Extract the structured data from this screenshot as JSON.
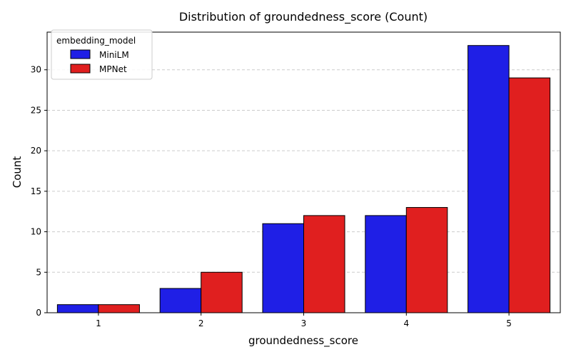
{
  "chart_data": {
    "type": "bar",
    "title": "Distribution of groundedness_score (Count)",
    "xlabel": "groundedness_score",
    "ylabel": "Count",
    "categories": [
      "1",
      "2",
      "3",
      "4",
      "5"
    ],
    "series": [
      {
        "name": "MiniLM",
        "color": "#1f1fe6",
        "values": [
          1,
          3,
          11,
          12,
          33
        ]
      },
      {
        "name": "MPNet",
        "color": "#e01f1f",
        "values": [
          1,
          5,
          12,
          13,
          29
        ]
      }
    ],
    "ylim": [
      0,
      34.65
    ],
    "yticks": [
      0,
      5,
      10,
      15,
      20,
      25,
      30
    ],
    "grid": "y-dashed",
    "legend": {
      "title": "embedding_model",
      "placement": "top-left"
    }
  }
}
